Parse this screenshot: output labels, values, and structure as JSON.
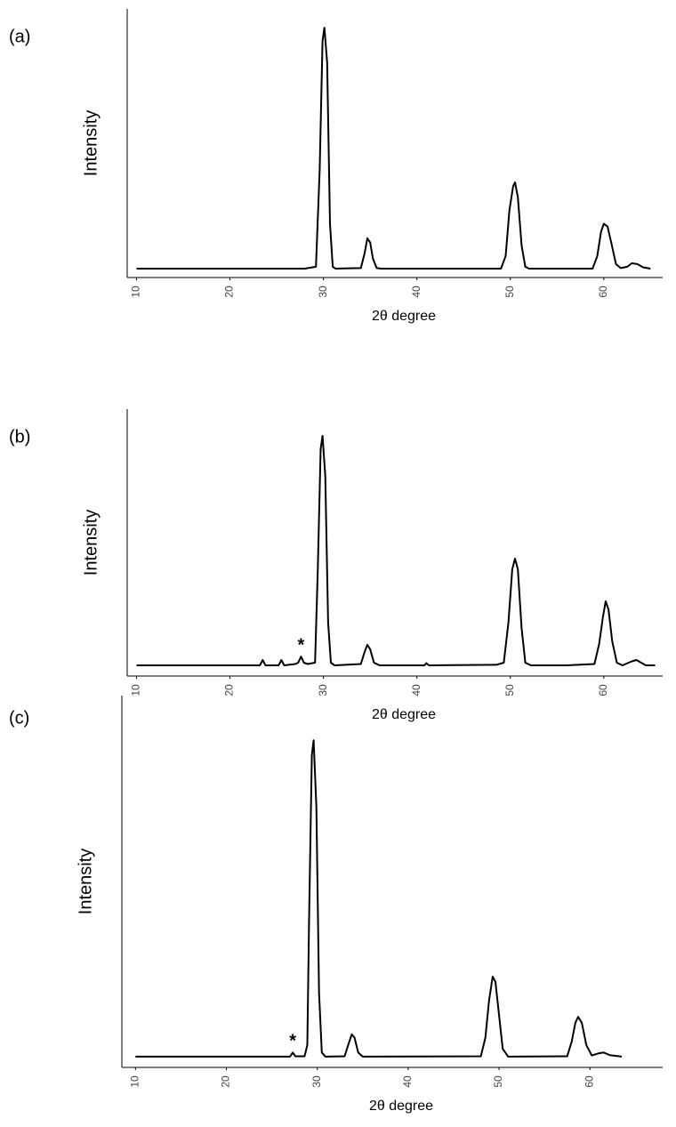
{
  "chart_data": [
    {
      "type": "line",
      "label": "(a)",
      "xlabel": "2θ degree",
      "ylabel": "Intensity",
      "color": "#000000",
      "xlim": [
        9,
        66.3
      ],
      "ylim": [
        0,
        100
      ],
      "xticks": [
        10,
        20,
        30,
        40,
        50,
        60
      ],
      "x": [
        10,
        28,
        29.2,
        29.6,
        29.9,
        30.1,
        30.4,
        30.7,
        31.0,
        31.3,
        34.0,
        34.4,
        34.7,
        35.0,
        35.3,
        35.7,
        36.2,
        49.0,
        49.5,
        49.9,
        50.3,
        50.5,
        50.8,
        51.2,
        51.6,
        52,
        58.8,
        59.3,
        59.7,
        60.0,
        60.4,
        60.8,
        61.3,
        61.8,
        62.5,
        63.0,
        63.6,
        64.2,
        65
      ],
      "values": [
        3.3,
        3.3,
        4,
        40,
        88,
        93,
        80,
        20,
        4,
        3.3,
        3.5,
        9,
        14.6,
        13,
        7,
        3.5,
        3.3,
        3.3,
        8,
        25,
        34,
        35.4,
        30,
        12,
        4,
        3.3,
        3.3,
        8,
        17,
        20,
        19,
        13,
        5,
        3.5,
        4,
        5.3,
        5,
        3.8,
        3.3
      ],
      "annotations": []
    },
    {
      "type": "line",
      "label": "(b)",
      "xlabel": "2θ degree",
      "ylabel": "Intensity",
      "color": "#000000",
      "xlim": [
        9,
        66.3
      ],
      "ylim": [
        0,
        100
      ],
      "xticks": [
        10,
        20,
        30,
        40,
        50,
        60
      ],
      "x": [
        10,
        23.2,
        23.5,
        23.8,
        25.2,
        25.5,
        25.8,
        27.0,
        27.3,
        27.6,
        27.9,
        28.3,
        29.1,
        29.4,
        29.7,
        29.9,
        30.2,
        30.5,
        30.8,
        31.2,
        34.0,
        34.4,
        34.7,
        35.0,
        35.4,
        36,
        40.8,
        41,
        41.3,
        48.5,
        49.3,
        49.8,
        50.2,
        50.5,
        50.8,
        51.2,
        51.6,
        52.2,
        56,
        59,
        59.5,
        59.9,
        60.2,
        60.5,
        60.9,
        61.4,
        62,
        63,
        63.5,
        64.0,
        64.5,
        65.5
      ],
      "values": [
        4,
        4,
        6,
        4,
        4,
        6,
        4,
        4.5,
        5,
        7.3,
        5,
        4.5,
        5,
        40,
        85,
        90,
        75,
        20,
        5,
        4,
        4.5,
        9,
        11.7,
        10,
        5,
        4,
        4,
        4.8,
        4,
        4.2,
        5,
        20,
        40,
        44,
        40,
        18,
        5,
        4,
        4,
        4.5,
        12,
        22,
        28,
        25,
        13,
        5,
        4,
        5.5,
        6,
        5,
        4,
        4
      ],
      "annotations": [
        {
          "text": "*",
          "x": 27.6
        }
      ]
    },
    {
      "type": "line",
      "label": "(c)",
      "xlabel": "2θ degree",
      "ylabel": "Intensity",
      "color": "#000000",
      "xlim": [
        8.5,
        68
      ],
      "ylim": [
        0,
        100
      ],
      "xticks": [
        10,
        20,
        30,
        40,
        50,
        60
      ],
      "x": [
        10,
        27,
        27.3,
        27.6,
        28.6,
        28.9,
        29.1,
        29.4,
        29.6,
        29.9,
        30.2,
        30.5,
        30.9,
        33.0,
        33.4,
        33.8,
        34.1,
        34.5,
        35,
        48.0,
        48.5,
        48.9,
        49.3,
        49.6,
        50.0,
        50.4,
        51,
        57.5,
        58.0,
        58.4,
        58.7,
        59.1,
        59.6,
        60.2,
        61.0,
        61.5,
        62.2,
        63.5
      ],
      "values": [
        2.9,
        2.9,
        4,
        3,
        3,
        6,
        40,
        84,
        88,
        70,
        20,
        4,
        2.9,
        3,
        6,
        8.9,
        8,
        4,
        2.9,
        3,
        8,
        18,
        24.4,
        23,
        14,
        5,
        2.9,
        3,
        7,
        12,
        13.6,
        12,
        6,
        3.2,
        3.8,
        4,
        3.3,
        2.9
      ],
      "annotations": [
        {
          "text": "*",
          "x": 27.3
        }
      ]
    }
  ]
}
